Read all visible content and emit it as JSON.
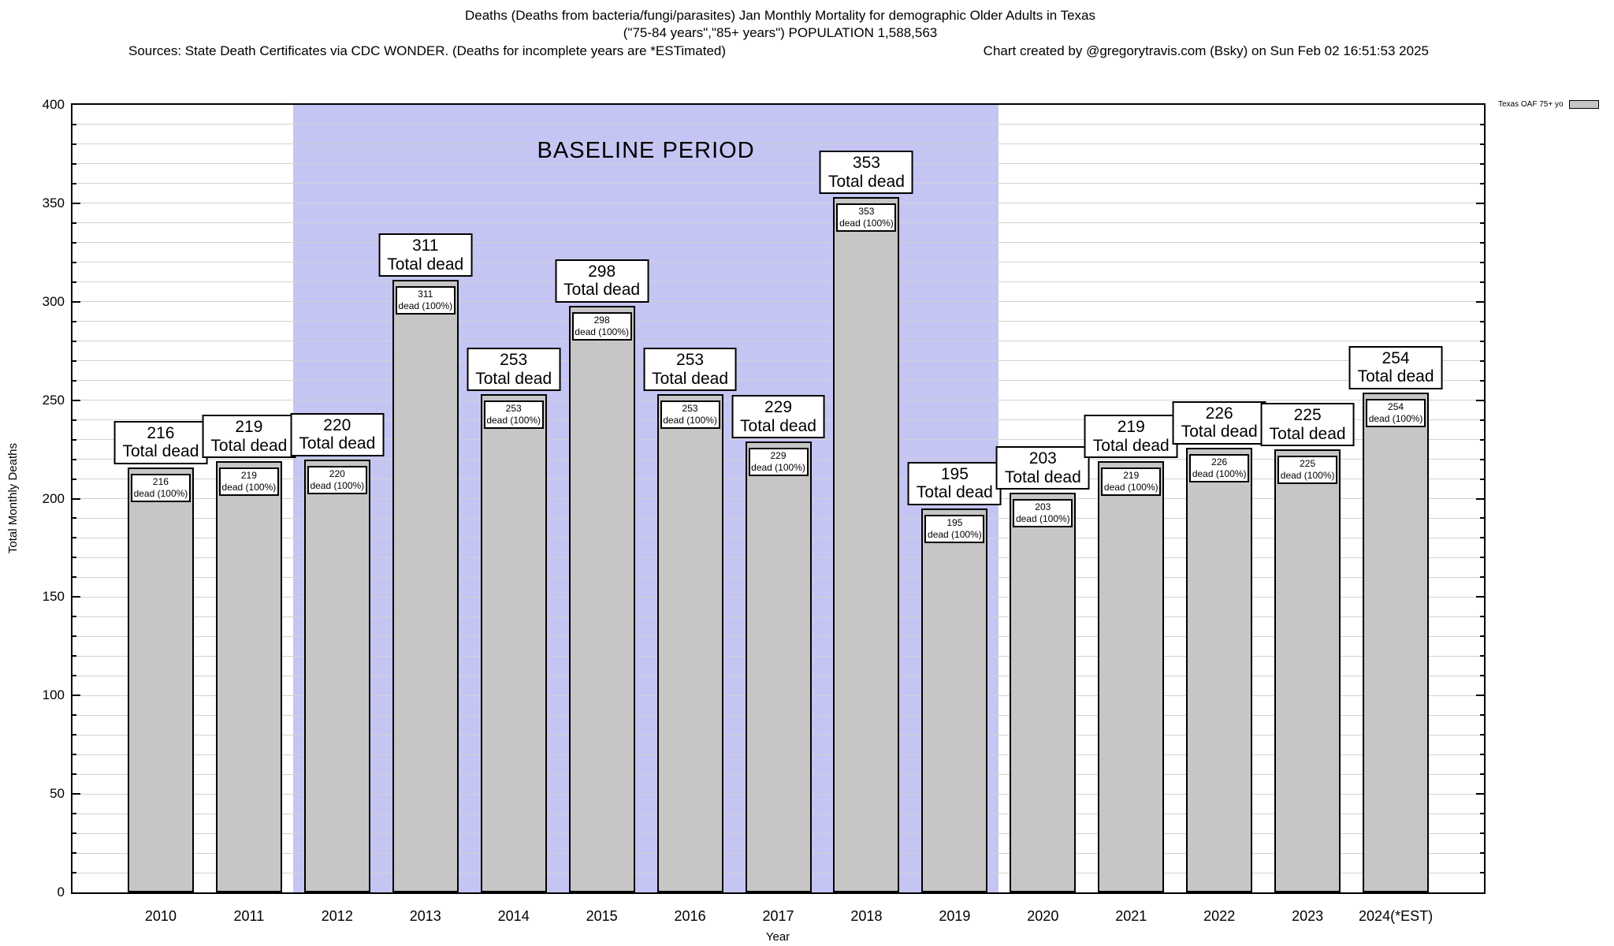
{
  "header": {
    "title_line1": "Deaths (Deaths from bacteria/fungi/parasites) Jan Monthly Mortality for demographic Older Adults in Texas",
    "title_line2": "(\"75-84 years\",\"85+ years\") POPULATION 1,588,563",
    "source_left": "Sources: State Death Certificates via CDC WONDER. (Deaths for incomplete years are *ESTimated)",
    "source_right": "Chart created by @gregorytravis.com (Bsky) on Sun Feb 02 16:51:53 2025"
  },
  "chart_data": {
    "type": "bar",
    "title": "Deaths (Deaths from bacteria/fungi/parasites) Jan Monthly Mortality for demographic Older Adults in Texas",
    "xlabel": "Year",
    "ylabel": "Total Monthly Deaths",
    "ylim": [
      0,
      400
    ],
    "ytick_step": 50,
    "minor_grid_step": 10,
    "grid": true,
    "legend": {
      "label": "Texas OAF 75+ yo",
      "position": "outside-top-right"
    },
    "categories": [
      "2010",
      "2011",
      "2012",
      "2013",
      "2014",
      "2015",
      "2016",
      "2017",
      "2018",
      "2019",
      "2020",
      "2021",
      "2022",
      "2023",
      "2024(*EST)"
    ],
    "values": [
      216,
      219,
      220,
      311,
      253,
      298,
      253,
      229,
      353,
      195,
      203,
      219,
      226,
      225,
      254
    ],
    "bar_top_label_line2": "Total dead",
    "bar_inner_label_line2": "dead (100%)",
    "baseline_period": {
      "label": "BASELINE PERIOD",
      "from_category": "2012",
      "to_category": "2019"
    }
  },
  "colors": {
    "bar_fill": "#c6c6c6",
    "bar_border": "#000000",
    "baseline_bg": "#c5c5f4",
    "gridline": "#d2d2d2",
    "axis": "#000000"
  }
}
